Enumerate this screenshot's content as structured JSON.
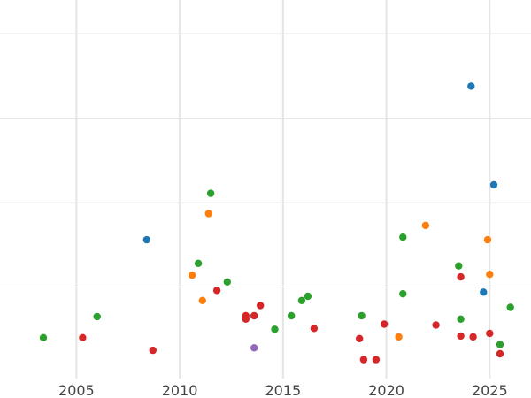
{
  "chart_data": {
    "type": "scatter",
    "title": "",
    "xlabel": "",
    "ylabel": "",
    "xlim": [
      2001.3,
      2027.0
    ],
    "ylim": [
      -0.3,
      4.1
    ],
    "x_ticks": [
      2005,
      2010,
      2015,
      2020,
      2025
    ],
    "x_tick_labels": [
      "2005",
      "2010",
      "2015",
      "2020",
      "2025"
    ],
    "y_gridlines": [
      0.7,
      1.7,
      2.7,
      3.7
    ],
    "grid": true,
    "legend": "none",
    "colors": {
      "blue": "#1f77b4",
      "orange": "#ff7f0e",
      "green": "#2ca02c",
      "red": "#d62728",
      "purple": "#9467bd"
    },
    "points": [
      {
        "x": 2003.4,
        "y": 0.1,
        "color": "green"
      },
      {
        "x": 2005.3,
        "y": 0.1,
        "color": "red"
      },
      {
        "x": 2006.0,
        "y": 0.35,
        "color": "green"
      },
      {
        "x": 2008.4,
        "y": 1.26,
        "color": "blue"
      },
      {
        "x": 2008.7,
        "y": -0.05,
        "color": "red"
      },
      {
        "x": 2010.6,
        "y": 0.84,
        "color": "orange"
      },
      {
        "x": 2010.9,
        "y": 0.98,
        "color": "green"
      },
      {
        "x": 2011.1,
        "y": 0.54,
        "color": "orange"
      },
      {
        "x": 2011.4,
        "y": 1.57,
        "color": "orange"
      },
      {
        "x": 2011.5,
        "y": 1.81,
        "color": "green"
      },
      {
        "x": 2011.8,
        "y": 0.66,
        "color": "red"
      },
      {
        "x": 2012.3,
        "y": 0.76,
        "color": "green"
      },
      {
        "x": 2013.2,
        "y": 0.36,
        "color": "red"
      },
      {
        "x": 2013.2,
        "y": 0.32,
        "color": "red"
      },
      {
        "x": 2013.6,
        "y": 0.36,
        "color": "red"
      },
      {
        "x": 2013.6,
        "y": -0.02,
        "color": "purple"
      },
      {
        "x": 2013.9,
        "y": 0.48,
        "color": "red"
      },
      {
        "x": 2014.6,
        "y": 0.2,
        "color": "green"
      },
      {
        "x": 2015.4,
        "y": 0.36,
        "color": "green"
      },
      {
        "x": 2015.9,
        "y": 0.54,
        "color": "green"
      },
      {
        "x": 2016.2,
        "y": 0.59,
        "color": "green"
      },
      {
        "x": 2016.5,
        "y": 0.21,
        "color": "red"
      },
      {
        "x": 2018.7,
        "y": 0.09,
        "color": "red"
      },
      {
        "x": 2018.8,
        "y": 0.36,
        "color": "green"
      },
      {
        "x": 2018.9,
        "y": -0.16,
        "color": "red"
      },
      {
        "x": 2019.5,
        "y": -0.16,
        "color": "red"
      },
      {
        "x": 2019.9,
        "y": 0.26,
        "color": "red"
      },
      {
        "x": 2020.6,
        "y": 0.11,
        "color": "orange"
      },
      {
        "x": 2020.8,
        "y": 0.62,
        "color": "green"
      },
      {
        "x": 2020.8,
        "y": 1.29,
        "color": "green"
      },
      {
        "x": 2021.9,
        "y": 1.43,
        "color": "orange"
      },
      {
        "x": 2022.4,
        "y": 0.25,
        "color": "red"
      },
      {
        "x": 2023.5,
        "y": 0.95,
        "color": "green"
      },
      {
        "x": 2023.6,
        "y": 0.82,
        "color": "red"
      },
      {
        "x": 2023.6,
        "y": 0.32,
        "color": "green"
      },
      {
        "x": 2023.6,
        "y": 0.12,
        "color": "red"
      },
      {
        "x": 2024.1,
        "y": 3.08,
        "color": "blue"
      },
      {
        "x": 2024.2,
        "y": 0.11,
        "color": "red"
      },
      {
        "x": 2024.7,
        "y": 0.64,
        "color": "blue"
      },
      {
        "x": 2024.9,
        "y": 1.26,
        "color": "orange"
      },
      {
        "x": 2025.0,
        "y": 0.85,
        "color": "orange"
      },
      {
        "x": 2025.0,
        "y": 0.15,
        "color": "red"
      },
      {
        "x": 2025.2,
        "y": 1.91,
        "color": "blue"
      },
      {
        "x": 2025.5,
        "y": 0.02,
        "color": "green"
      },
      {
        "x": 2025.5,
        "y": -0.09,
        "color": "red"
      },
      {
        "x": 2026.0,
        "y": 0.46,
        "color": "green"
      }
    ]
  }
}
